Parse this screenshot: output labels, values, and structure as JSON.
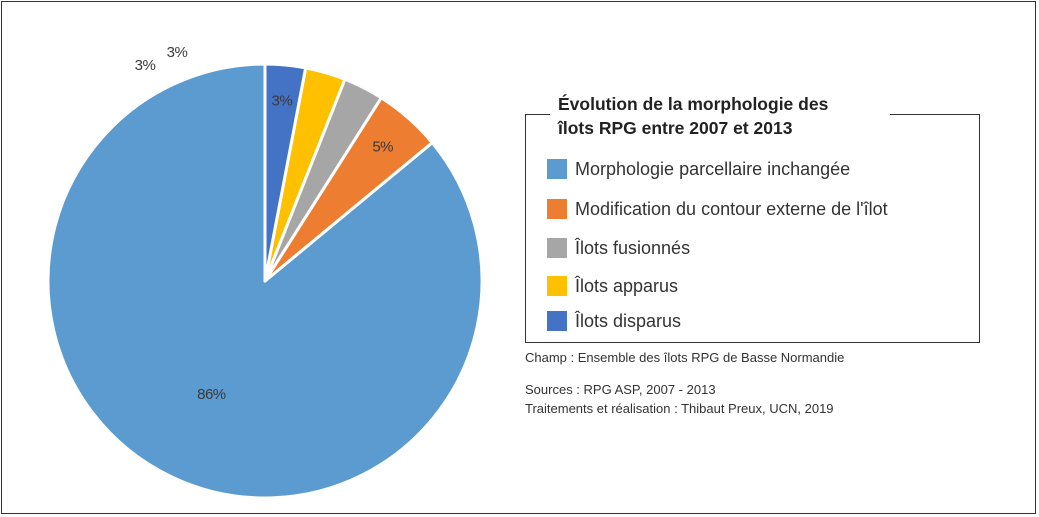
{
  "chart_data": {
    "type": "pie",
    "title": "Évolution de la morphologie des îlots RPG entre 2007 et 2013",
    "title_lines": [
      "Évolution de la morphologie des",
      "îlots RPG entre 2007 et 2013"
    ],
    "start_angle_deg": 0,
    "direction": "counterclockwise",
    "slices": [
      {
        "label": "Morphologie parcellaire inchangée",
        "value": 86,
        "display": "86%",
        "color": "#5b9bd0"
      },
      {
        "label": "Modification du contour externe de l'îlot",
        "value": 5,
        "display": "5%",
        "color": "#ed7d31"
      },
      {
        "label": "Îlots fusionnés",
        "value": 3,
        "display": "3%",
        "color": "#a6a6a6"
      },
      {
        "label": "Îlots apparus",
        "value": 3,
        "display": "3%",
        "color": "#ffc000"
      },
      {
        "label": "Îlots disparus",
        "value": 3,
        "display": "3%",
        "color": "#4472c4"
      }
    ],
    "legend_position": "right"
  },
  "notes": {
    "champ": "Champ : Ensemble des îlots RPG de Basse Normandie",
    "sources": "Sources : RPG ASP, 2007 - 2013",
    "traitements": "Traitements et réalisation : Thibaut Preux, UCN, 2019"
  }
}
